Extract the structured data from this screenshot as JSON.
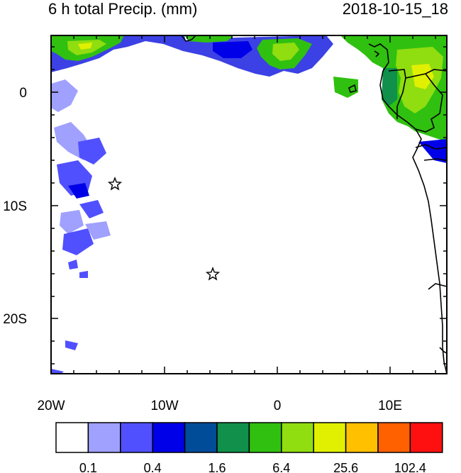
{
  "header": {
    "title": "6 h total Precip. (mm)",
    "datetime": "2018-10-15_18"
  },
  "axes": {
    "lon_ticks": [
      "20W",
      "10W",
      "0",
      "10E"
    ],
    "lat_ticks": [
      "0",
      "10S",
      "20S"
    ],
    "lon_range_deg": [
      -20,
      15
    ],
    "lat_range_deg": [
      -25,
      5
    ]
  },
  "colorbar": {
    "colors": [
      "#ffffff",
      "#a0a0ff",
      "#5050ff",
      "#0000e8",
      "#004c99",
      "#10904a",
      "#30c010",
      "#90dd10",
      "#e0f000",
      "#ffc000",
      "#ff6000",
      "#ff1010"
    ],
    "labels": [
      "0.1",
      "0.4",
      "1.6",
      "6.4",
      "25.6",
      "102.4"
    ]
  },
  "markers": [
    {
      "name": "station-star-1",
      "lon": -14.3,
      "lat": -8.0
    },
    {
      "name": "station-star-2",
      "lon": -5.7,
      "lat": -15.9
    }
  ]
}
